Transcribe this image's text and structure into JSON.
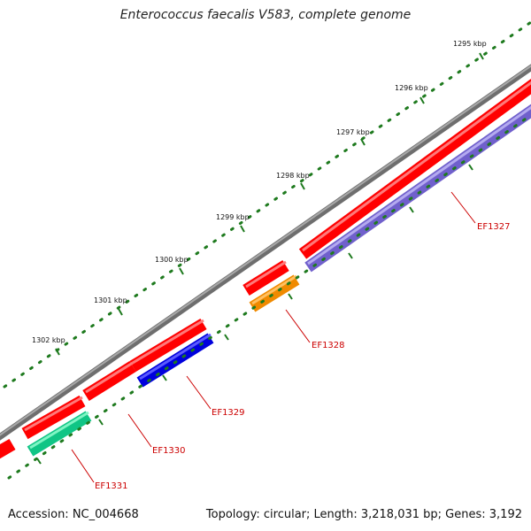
{
  "title": "Enterococcus faecalis V583, complete genome",
  "accession": "Accession: NC_004668",
  "info": "Topology: circular; Length: 3,218,031 bp; Genes: 3,192",
  "kbp_labels": [
    "1295 kbp",
    "1296 kbp",
    "1297 kbp",
    "1298 kbp",
    "1299 kbp",
    "1300 kbp",
    "1301 kbp",
    "1302 kbp"
  ],
  "genes": [
    {
      "id": "EF1327",
      "color": "#8a7ae0"
    },
    {
      "id": "EF1328",
      "color": "#ff9b00"
    },
    {
      "id": "EF1329",
      "color": "#0000ee"
    },
    {
      "id": "EF1330",
      "color": "#ff0000"
    },
    {
      "id": "EF1331",
      "color": "#1de69b"
    }
  ],
  "colors": {
    "backbone": "#8a8a8a",
    "forward_strand": "#ff0000",
    "tick": "#1e7a1e",
    "label": "#cc0000"
  }
}
